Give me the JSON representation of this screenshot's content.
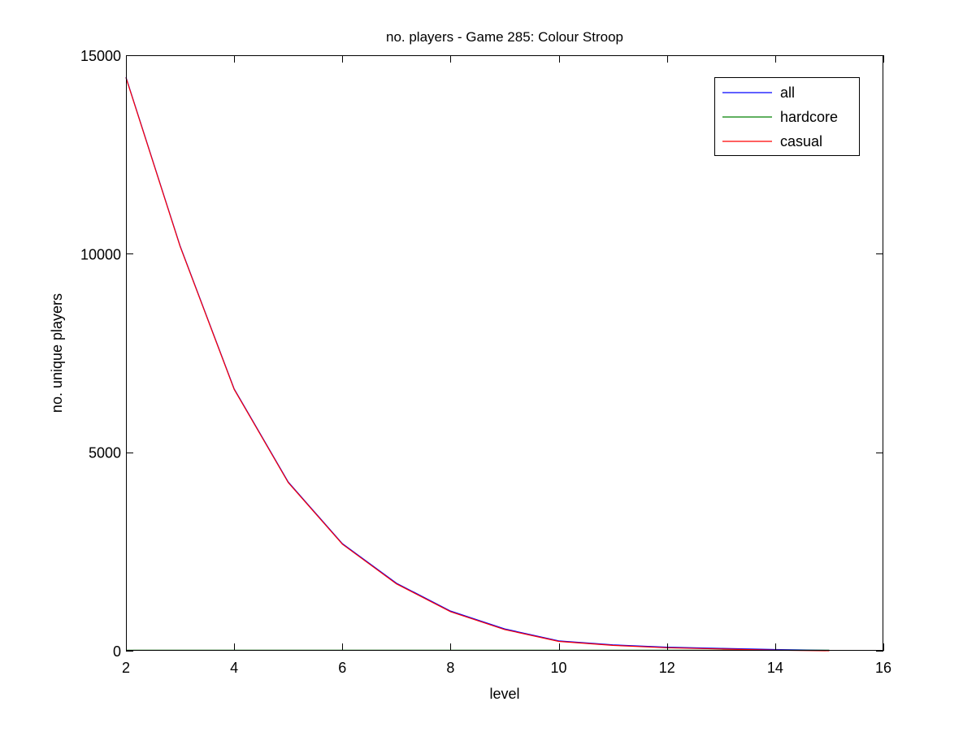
{
  "chart_data": {
    "type": "line",
    "title": "no. players - Game 285: Colour Stroop",
    "xlabel": "level",
    "ylabel": "no. unique players",
    "xlim": [
      2,
      16
    ],
    "ylim": [
      0,
      15000
    ],
    "xticks": [
      2,
      4,
      6,
      8,
      10,
      12,
      14,
      16
    ],
    "yticks": [
      0,
      5000,
      10000,
      15000
    ],
    "grid": false,
    "legend_position": "top-right",
    "x": [
      2,
      3,
      4,
      5,
      6,
      7,
      8,
      9,
      10,
      11,
      12,
      13,
      14,
      15
    ],
    "series": [
      {
        "name": "all",
        "color": "#0000ff",
        "values": [
          14450,
          10200,
          6600,
          4250,
          2700,
          1700,
          1000,
          550,
          250,
          150,
          90,
          60,
          30,
          10
        ]
      },
      {
        "name": "hardcore",
        "color": "#008000",
        "values": [
          15,
          15,
          15,
          15,
          15,
          15,
          15,
          15,
          15,
          15,
          15,
          15,
          15,
          15
        ]
      },
      {
        "name": "casual",
        "color": "#ff0000",
        "values": [
          14435,
          10185,
          6585,
          4235,
          2685,
          1685,
          985,
          535,
          235,
          135,
          75,
          45,
          15,
          0
        ]
      }
    ]
  }
}
